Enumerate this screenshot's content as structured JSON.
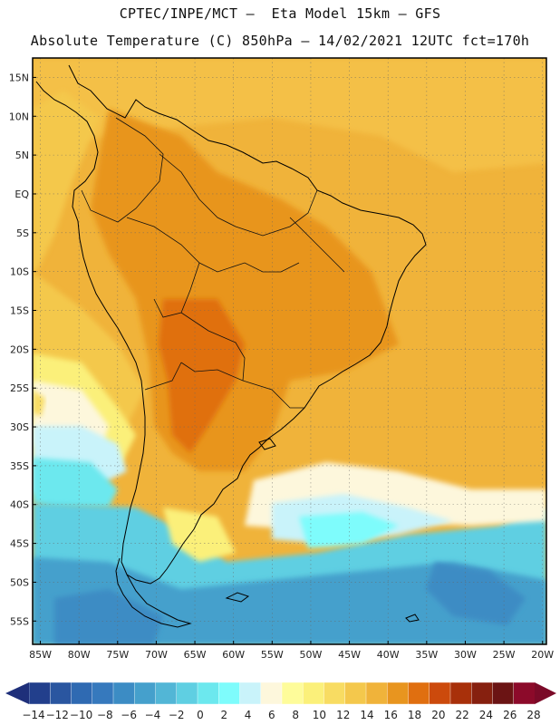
{
  "header": {
    "line1": "CPTEC/INPE/MCT –  Eta Model 15km – GFS",
    "line2": "Absolute Temperature (C) 850hPa – 14/02/2021 12UTC fct=170h"
  },
  "map": {
    "lat_labels": [
      "15N",
      "10N",
      "5N",
      "EQ",
      "5S",
      "10S",
      "15S",
      "20S",
      "25S",
      "30S",
      "35S",
      "40S",
      "45S",
      "50S",
      "55S"
    ],
    "lat_values": [
      15,
      10,
      5,
      0,
      -5,
      -10,
      -15,
      -20,
      -25,
      -30,
      -35,
      -40,
      -45,
      -50,
      -55
    ],
    "lon_labels": [
      "85W",
      "80W",
      "75W",
      "70W",
      "65W",
      "60W",
      "55W",
      "50W",
      "45W",
      "40W",
      "35W",
      "30W",
      "25W",
      "20W"
    ],
    "lon_values": [
      -85,
      -80,
      -75,
      -70,
      -65,
      -60,
      -55,
      -50,
      -45,
      -40,
      -35,
      -30,
      -25,
      -20
    ],
    "lat_range": [
      -58,
      17.5
    ],
    "lon_range": [
      -86,
      -19.5
    ]
  },
  "colorbar": {
    "labels": [
      "-14",
      "-12",
      "-10",
      "-8",
      "-6",
      "-4",
      "-2",
      "0",
      "2",
      "4",
      "6",
      "8",
      "10",
      "12",
      "14",
      "16",
      "18",
      "20",
      "22",
      "24",
      "26",
      "28"
    ],
    "colors": [
      "#223f8c",
      "#2a56a0",
      "#2f6ab2",
      "#3679bd",
      "#3c8cc4",
      "#45a0cc",
      "#52b6d6",
      "#5fcfe2",
      "#6ce8ee",
      "#7efcfc",
      "#c9f3fa",
      "#fdf7dc",
      "#fefc9a",
      "#fbf07a",
      "#f8dc62",
      "#f4c84c",
      "#f0b33a",
      "#e8951f",
      "#e06f10",
      "#cc4a0c",
      "#a8300a",
      "#86200f",
      "#6b1414",
      "#8c0a2a"
    ],
    "arrow_colors": [
      "#1e2f7a",
      "#7b0a28"
    ]
  }
}
